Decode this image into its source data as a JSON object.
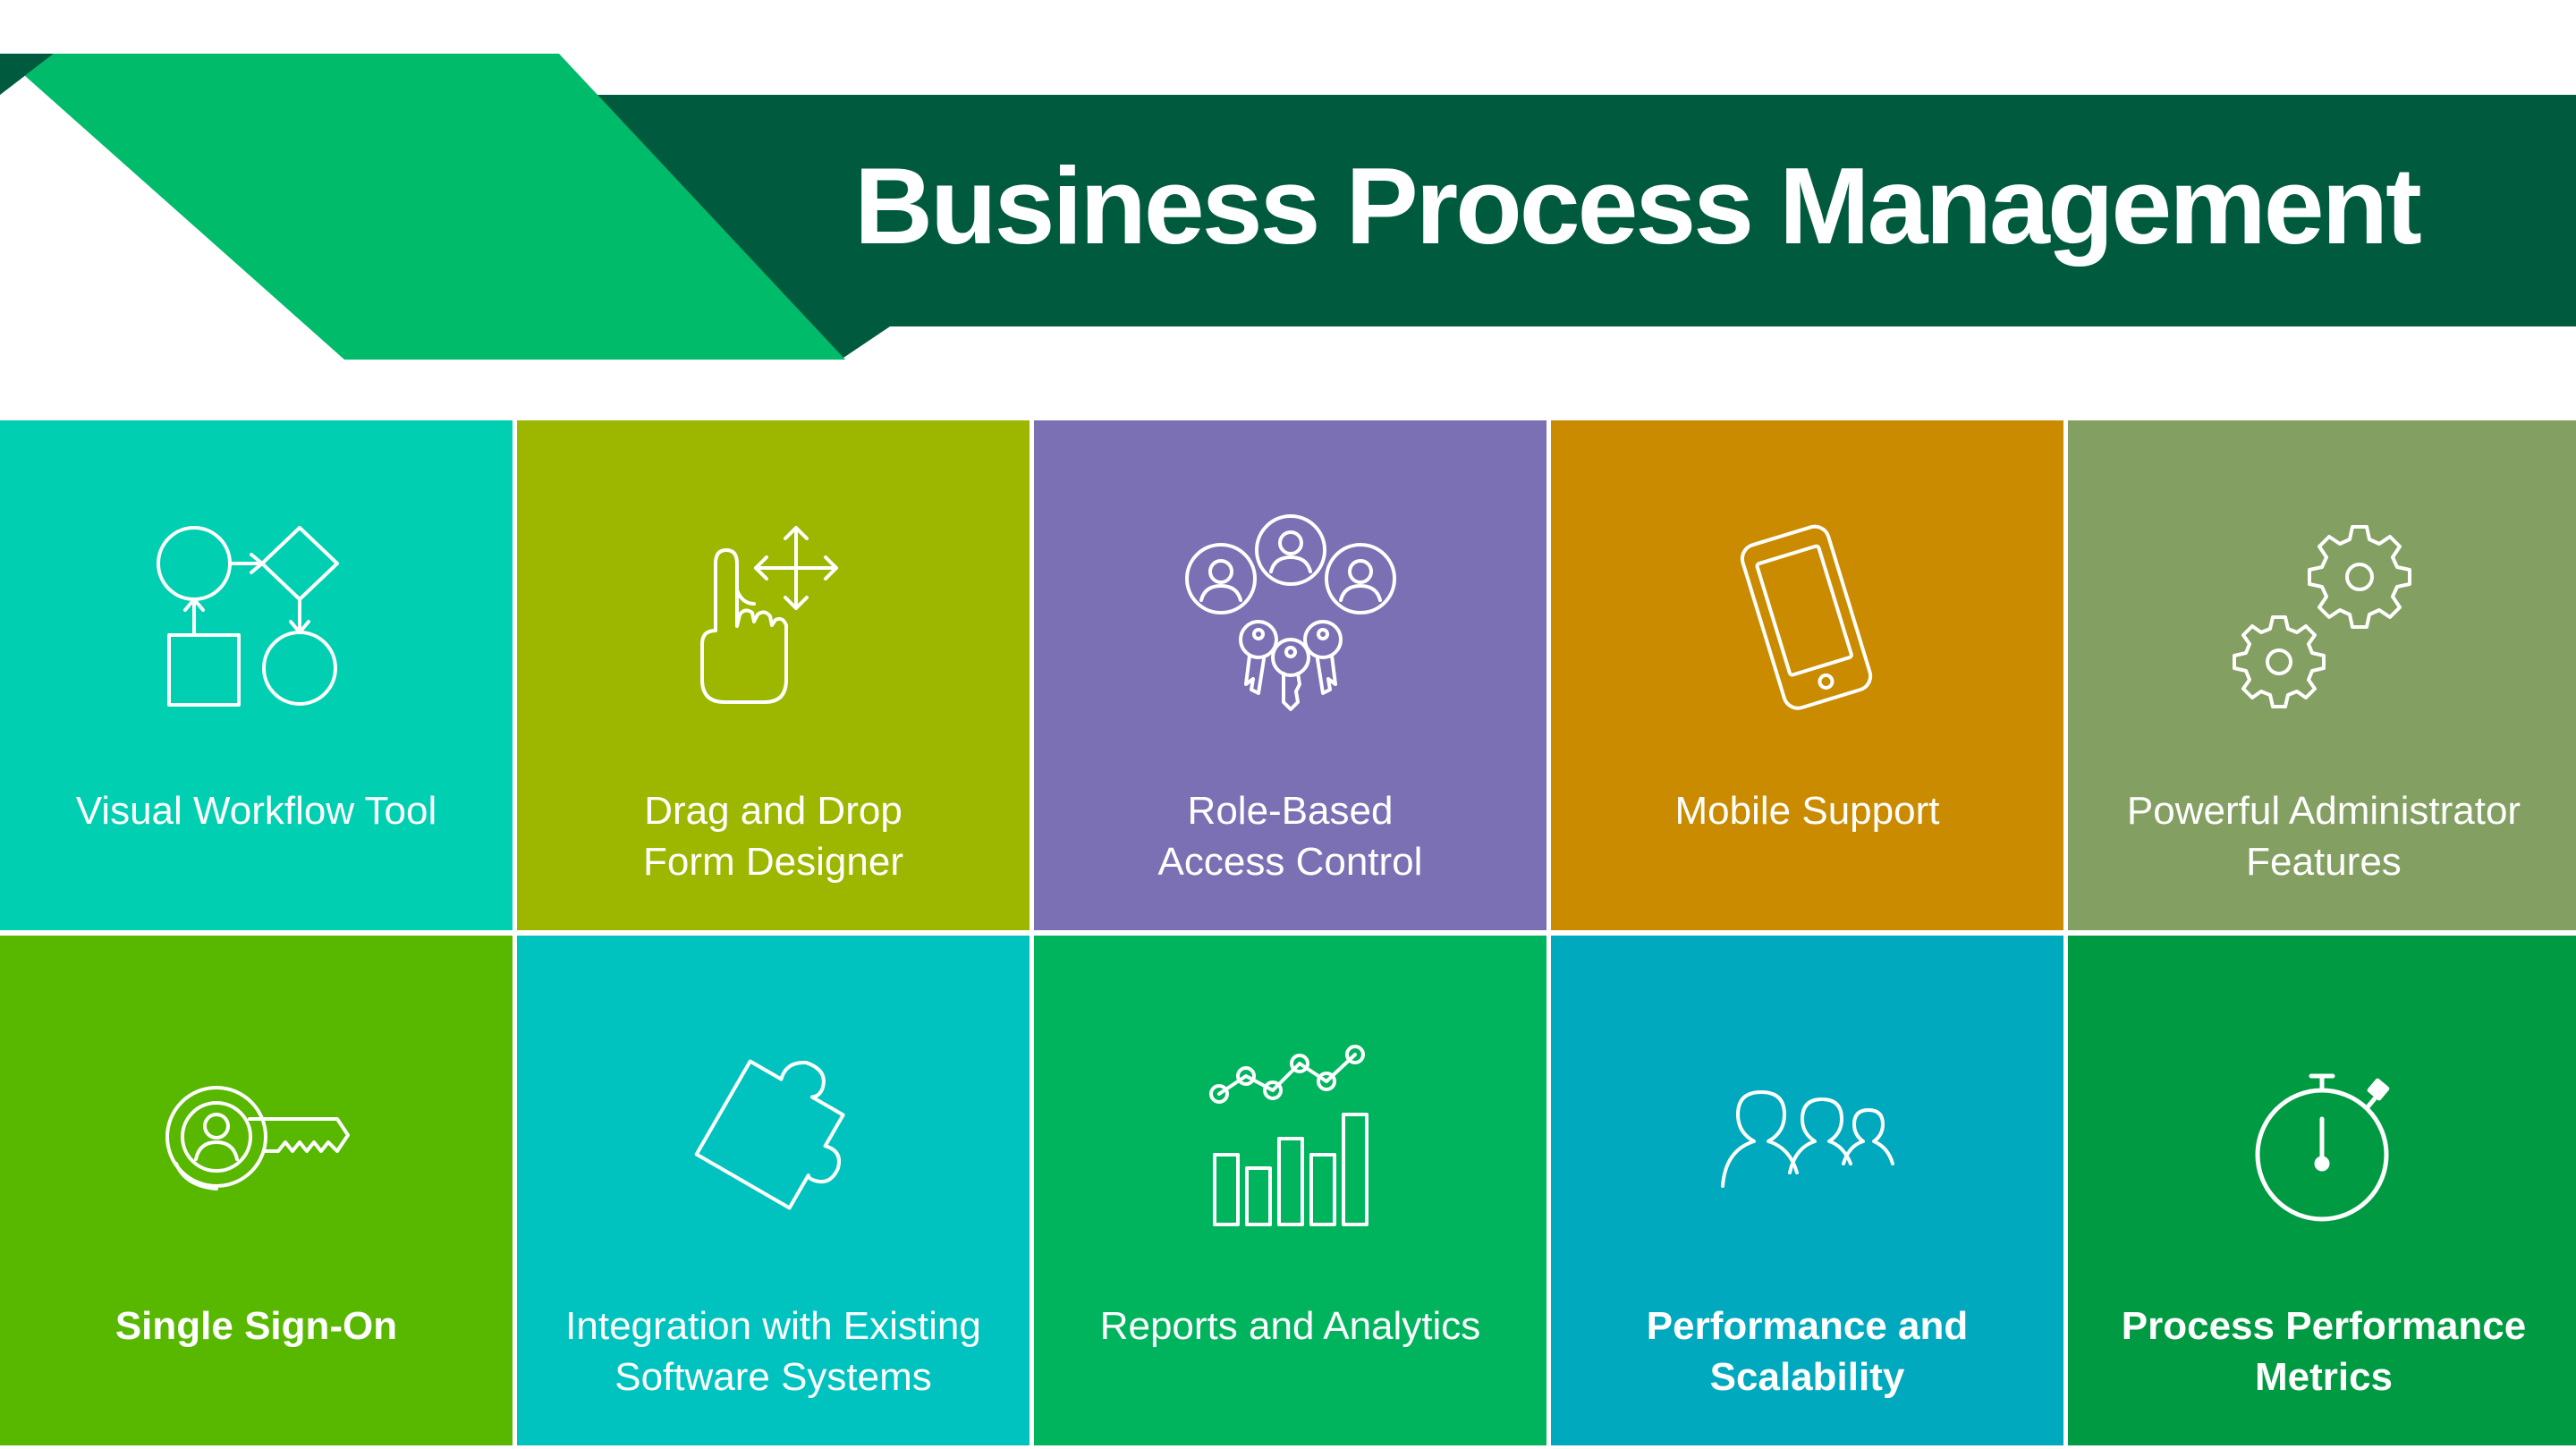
{
  "title": "Business Process Management",
  "colors": {
    "banner_dark": "#005b3e",
    "banner_bright": "#00bb6a"
  },
  "tiles": [
    {
      "label": "Visual Workflow Tool",
      "color": "#00cfb2",
      "icon": "workflow-icon",
      "bold": false
    },
    {
      "label": "Drag and Drop\nForm Designer",
      "color": "#9db700",
      "icon": "drag-hand-icon",
      "bold": false
    },
    {
      "label": "Role-Based\nAccess Control",
      "color": "#7c70b4",
      "icon": "users-keys-icon",
      "bold": false
    },
    {
      "label": "Mobile Support",
      "color": "#cb8b00",
      "icon": "mobile-phone-icon",
      "bold": false
    },
    {
      "label": "Powerful Administrator\nFeatures",
      "color": "#849f62",
      "icon": "gears-icon",
      "bold": false
    },
    {
      "label": "Single Sign-On",
      "color": "#58b800",
      "icon": "key-user-icon",
      "bold": true
    },
    {
      "label": "Integration with Existing\nSoftware Systems",
      "color": "#00c3c0",
      "icon": "puzzle-piece-icon",
      "bold": false
    },
    {
      "label": "Reports and Analytics",
      "color": "#00b45e",
      "icon": "bar-chart-icon",
      "bold": false
    },
    {
      "label": "Performance and\nScalability",
      "color": "#00a9bd",
      "icon": "people-group-icon",
      "bold": true
    },
    {
      "label": "Process Performance\nMetrics",
      "color": "#009a42",
      "icon": "stopwatch-icon",
      "bold": true
    }
  ]
}
